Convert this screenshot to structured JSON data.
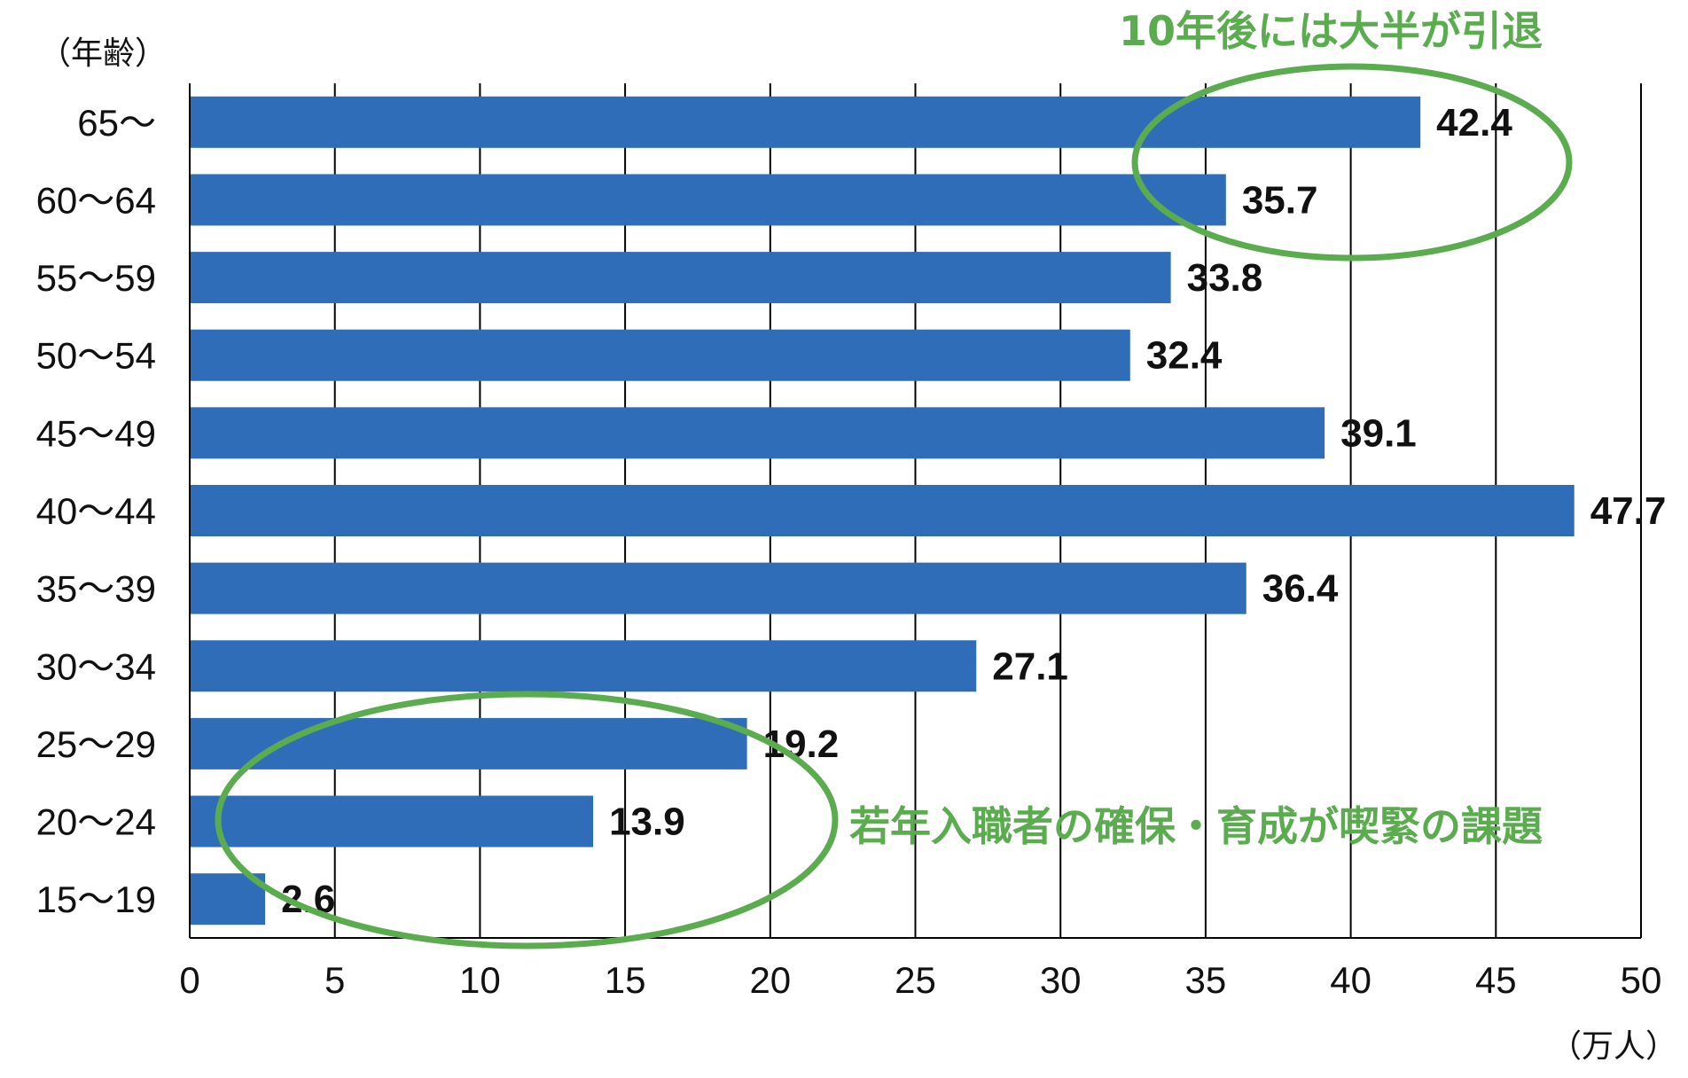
{
  "chart_data": {
    "type": "bar",
    "orientation": "horizontal",
    "categories": [
      "65～",
      "60～64",
      "55～59",
      "50～54",
      "45～49",
      "40～44",
      "35～39",
      "30～34",
      "25～29",
      "20～24",
      "15～19"
    ],
    "values": [
      42.4,
      35.7,
      33.8,
      32.4,
      39.1,
      47.7,
      36.4,
      27.1,
      19.2,
      13.9,
      2.6
    ],
    "value_labels": [
      "42.4",
      "35.7",
      "33.8",
      "32.4",
      "39.1",
      "47.7",
      "36.4",
      "27.1",
      "19.2",
      "13.9",
      "2.6"
    ],
    "xlim": [
      0,
      50
    ],
    "x_ticks": [
      0,
      5,
      10,
      15,
      20,
      25,
      30,
      35,
      40,
      45,
      50
    ],
    "x_tick_labels": [
      "0",
      "5",
      "10",
      "15",
      "20",
      "25",
      "30",
      "35",
      "40",
      "45",
      "50"
    ],
    "ylabel": "（年齢）",
    "xlabel": "（万人）",
    "grid": true,
    "annotations": [
      {
        "text": "10年後には大半が引退",
        "highlights": [
          "65～",
          "60～64"
        ],
        "color": "#5aac4f"
      },
      {
        "text": "若年入職者の確保・育成が喫緊の課題",
        "highlights": [
          "25～29",
          "20～24",
          "15～19"
        ],
        "color": "#5aac4f"
      }
    ]
  },
  "colors": {
    "bar": "#2f6db8",
    "annotation": "#5aac4f",
    "text": "#111111"
  }
}
